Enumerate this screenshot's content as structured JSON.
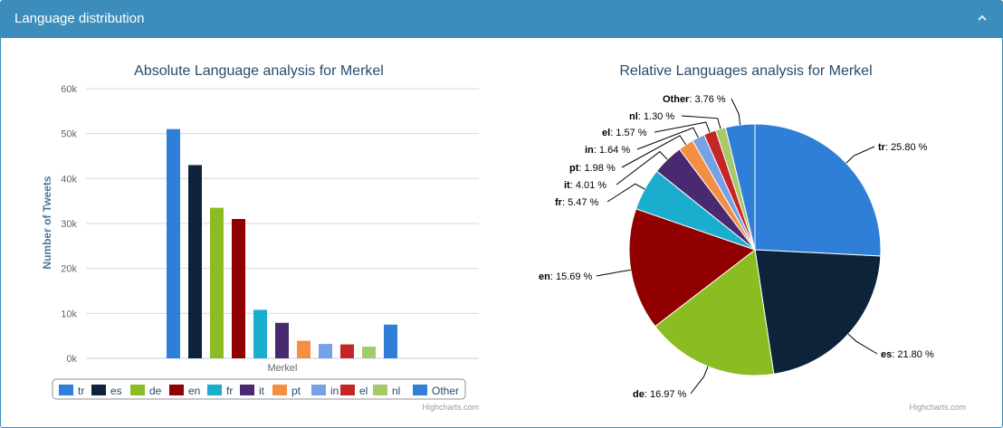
{
  "panel": {
    "title": "Language distribution",
    "collapse_icon": "chevron-up-icon",
    "header_color": "#3c8dbc"
  },
  "chart_data": [
    {
      "type": "bar",
      "title": "Absolute Language analysis for Merkel",
      "xlabel": "Merkel",
      "ylabel": "Number of Tweets",
      "categories": [
        "Merkel"
      ],
      "ylim": [
        0,
        60000
      ],
      "yticks": [
        "0k",
        "10k",
        "20k",
        "30k",
        "40k",
        "50k",
        "60k"
      ],
      "grid": true,
      "legend": "bottom",
      "series": [
        {
          "name": "tr",
          "values": [
            51000
          ],
          "color": "#2f7ed8"
        },
        {
          "name": "es",
          "values": [
            43000
          ],
          "color": "#0d233a"
        },
        {
          "name": "de",
          "values": [
            33500
          ],
          "color": "#8bbc21"
        },
        {
          "name": "en",
          "values": [
            31000
          ],
          "color": "#910000"
        },
        {
          "name": "fr",
          "values": [
            10800
          ],
          "color": "#1aadce"
        },
        {
          "name": "it",
          "values": [
            7900
          ],
          "color": "#492970"
        },
        {
          "name": "pt",
          "values": [
            3900
          ],
          "color": "#f28f43"
        },
        {
          "name": "in",
          "values": [
            3200
          ],
          "color": "#77a1e5"
        },
        {
          "name": "el",
          "values": [
            3100
          ],
          "color": "#c42525"
        },
        {
          "name": "nl",
          "values": [
            2600
          ],
          "color": "#a6c96a"
        },
        {
          "name": "Other",
          "values": [
            7500
          ],
          "color": "#2f7ed8"
        }
      ],
      "credits": "Highcharts.com"
    },
    {
      "type": "pie",
      "title": "Relative Languages analysis for Merkel",
      "slices": [
        {
          "name": "tr",
          "value": 25.8,
          "label": "25.80 %",
          "color": "#2f7ed8"
        },
        {
          "name": "es",
          "value": 21.8,
          "label": "21.80 %",
          "color": "#0d233a"
        },
        {
          "name": "de",
          "value": 16.97,
          "label": "16.97 %",
          "color": "#8bbc21"
        },
        {
          "name": "en",
          "value": 15.69,
          "label": "15.69 %",
          "color": "#910000"
        },
        {
          "name": "fr",
          "value": 5.47,
          "label": "5.47 %",
          "color": "#1aadce"
        },
        {
          "name": "it",
          "value": 4.01,
          "label": "4.01 %",
          "color": "#492970"
        },
        {
          "name": "pt",
          "value": 1.98,
          "label": "1.98 %",
          "color": "#f28f43"
        },
        {
          "name": "in",
          "value": 1.64,
          "label": "1.64 %",
          "color": "#77a1e5"
        },
        {
          "name": "el",
          "value": 1.57,
          "label": "1.57 %",
          "color": "#c42525"
        },
        {
          "name": "nl",
          "value": 1.3,
          "label": "1.30 %",
          "color": "#a6c96a"
        },
        {
          "name": "Other",
          "value": 3.76,
          "label": "3.76 %",
          "color": "#2f7ed8"
        }
      ],
      "credits": "Highcharts.com"
    }
  ]
}
